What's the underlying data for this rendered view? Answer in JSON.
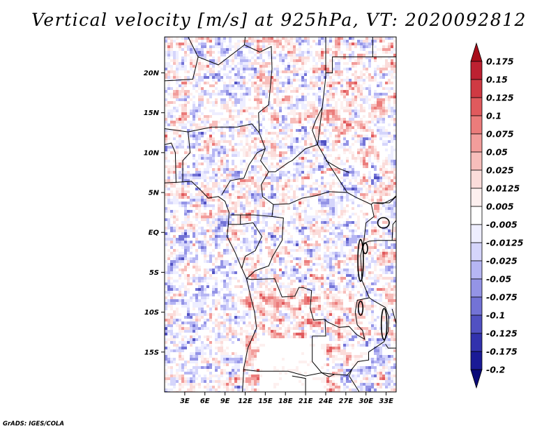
{
  "title": "Vertical velocity [m/s] at 925hPa, VT: 2020092812",
  "footer": "GrADS: IGES/COLA",
  "map": {
    "lon_range": [
      0,
      34.5
    ],
    "lat_range": [
      -20,
      24.5
    ],
    "lat_ticks": [
      {
        "label": "20N",
        "value": 20
      },
      {
        "label": "15N",
        "value": 15
      },
      {
        "label": "10N",
        "value": 10
      },
      {
        "label": "5N",
        "value": 5
      },
      {
        "label": "EQ",
        "value": 0
      },
      {
        "label": "5S",
        "value": -5
      },
      {
        "label": "10S",
        "value": -10
      },
      {
        "label": "15S",
        "value": -15
      }
    ],
    "lon_ticks": [
      {
        "label": "3E",
        "value": 3
      },
      {
        "label": "6E",
        "value": 6
      },
      {
        "label": "9E",
        "value": 9
      },
      {
        "label": "12E",
        "value": 12
      },
      {
        "label": "15E",
        "value": 15
      },
      {
        "label": "18E",
        "value": 18
      },
      {
        "label": "21E",
        "value": 21
      },
      {
        "label": "24E",
        "value": 24
      },
      {
        "label": "27E",
        "value": 27
      },
      {
        "label": "30E",
        "value": 30
      },
      {
        "label": "33E",
        "value": 33
      }
    ]
  },
  "colorbar": {
    "labels": [
      "0.175",
      "0.15",
      "0.125",
      "0.1",
      "0.075",
      "0.05",
      "0.025",
      "0.0125",
      "0.005",
      "-0.005",
      "-0.0125",
      "-0.025",
      "-0.05",
      "-0.075",
      "-0.1",
      "-0.125",
      "-0.175",
      "-0.2"
    ],
    "colors": [
      "#a80d1a",
      "#bd2131",
      "#cf3a43",
      "#e05a5d",
      "#eb7c7b",
      "#f29d9b",
      "#f7bebb",
      "#fbdcda",
      "#fdf0ef",
      "#ffffff",
      "#eeeeff",
      "#d5d5fb",
      "#b6b6f3",
      "#9494e6",
      "#7373d6",
      "#5151c2",
      "#3232ad",
      "#1a1a96",
      "#0a0a78"
    ]
  }
}
